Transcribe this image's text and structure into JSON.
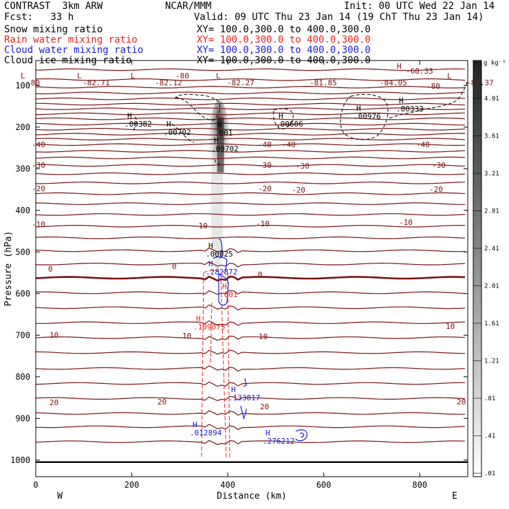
{
  "header": {
    "project": "CONTRAST  3km ARW",
    "org": "NCAR/MMM",
    "init": "Init: 00 UTC Wed 22 Jan 14",
    "fcst": "Fcst:   33 h",
    "valid": "Valid: 09 UTC Thu 23 Jan 14 (19 ChT Thu 23 Jan 14)",
    "lines": [
      {
        "name": "Snow mixing ratio",
        "xsec": "XY= 100.0,300.0 to 400.0,300.0",
        "color": "#000000"
      },
      {
        "name": "Rain water mixing ratio",
        "xsec": "XY= 100.0,300.0 to 400.0,300.0",
        "color": "#e8231f"
      },
      {
        "name": "Cloud water mixing ratio",
        "xsec": "XY= 100.0,300.0 to 400.0,300.0",
        "color": "#1a1ad6"
      },
      {
        "name": "Cloud ice mixing ratio",
        "xsec": "XY= 100.0,300.0 to 400.0,300.0",
        "color": "#000000"
      }
    ]
  },
  "chart_data": {
    "type": "contour cross-section",
    "xlabel": "Distance (km)",
    "ylabel": "Pressure (hPa)",
    "xlim": [
      0,
      900
    ],
    "ylim": [
      1040,
      40
    ],
    "x_ticks": [
      "0",
      "200",
      "400",
      "600",
      "800"
    ],
    "y_ticks": [
      "100",
      "200",
      "300",
      "400",
      "500",
      "600",
      "700",
      "800",
      "900",
      "1000"
    ],
    "x_end_labels": {
      "left": "W",
      "right": "E"
    },
    "colorbar": {
      "unit": "g kg⁻¹",
      "labels": [
        "4.01",
        "3.61",
        "3.21",
        "2.81",
        "2.41",
        "2.01",
        "1.61",
        "1.21",
        ".81",
        ".41",
        ".01"
      ]
    },
    "snow_plume": {
      "x_center": 385,
      "top_hPa": 160,
      "bottom_hPa": 560
    },
    "temperature_contours": {
      "color": "#7a1111",
      "levels_hPa": [
        62,
        86,
        104,
        118,
        132,
        145,
        156,
        168,
        180,
        193,
        205,
        217,
        229,
        242,
        258,
        274,
        292,
        312,
        334,
        360,
        384,
        410,
        438,
        466,
        497,
        529,
        562,
        598,
        634,
        670,
        706,
        742,
        780,
        816,
        852,
        888,
        920,
        956
      ],
      "freezing_level_hPa": 562,
      "labels": [
        {
          "text": "-80",
          "x": 38,
          "y": 120
        },
        {
          "text": "-82.71",
          "x": 120,
          "y": 120
        },
        {
          "text": "-82.12",
          "x": 225,
          "y": 120
        },
        {
          "text": "-82.27",
          "x": 330,
          "y": 120
        },
        {
          "text": "-81.85",
          "x": 450,
          "y": 120
        },
        {
          "text": "-84.05",
          "x": 552,
          "y": 120
        },
        {
          "text": "-80",
          "x": 620,
          "y": 125
        },
        {
          "text": "-82.37",
          "x": 678,
          "y": 120
        },
        {
          "text": "-80",
          "x": 255,
          "y": 110
        },
        {
          "text": "-68.33",
          "x": 590,
          "y": 103
        },
        {
          "text": "-40",
          "x": 46,
          "y": 210
        },
        {
          "text": "-40",
          "x": 375,
          "y": 210
        },
        {
          "text": "-40",
          "x": 410,
          "y": 210
        },
        {
          "text": "-40",
          "x": 605,
          "y": 210
        },
        {
          "text": "-30",
          "x": 46,
          "y": 240
        },
        {
          "text": "-30",
          "x": 375,
          "y": 240
        },
        {
          "text": "-30",
          "x": 430,
          "y": 241
        },
        {
          "text": "-30",
          "x": 628,
          "y": 240
        },
        {
          "text": "-20",
          "x": 46,
          "y": 274
        },
        {
          "text": "-20",
          "x": 375,
          "y": 274
        },
        {
          "text": "-20",
          "x": 424,
          "y": 276
        },
        {
          "text": "-20",
          "x": 624,
          "y": 275
        },
        {
          "text": "-10",
          "x": 46,
          "y": 326
        },
        {
          "text": "-10",
          "x": 282,
          "y": 328
        },
        {
          "text": "-10",
          "x": 372,
          "y": 325
        },
        {
          "text": "-10",
          "x": 580,
          "y": 323
        },
        {
          "text": "0",
          "x": 70,
          "y": 391
        },
        {
          "text": "0",
          "x": 250,
          "y": 387
        },
        {
          "text": "0",
          "x": 375,
          "y": 399
        },
        {
          "text": "10",
          "x": 648,
          "y": 474
        },
        {
          "text": "10",
          "x": 72,
          "y": 487
        },
        {
          "text": "10",
          "x": 265,
          "y": 488
        },
        {
          "text": "10",
          "x": 376,
          "y": 489
        },
        {
          "text": "20",
          "x": 72,
          "y": 585
        },
        {
          "text": "20",
          "x": 229,
          "y": 584
        },
        {
          "text": "20",
          "x": 378,
          "y": 591
        },
        {
          "text": "20",
          "x": 664,
          "y": 584
        }
      ]
    },
    "maxima_labels": [
      {
        "text": "H",
        "value": ".00382",
        "x": 185,
        "y": 172,
        "color": "#000000"
      },
      {
        "text": "H",
        "value": ".00702",
        "x": 242,
        "y": 184,
        "color": "#000000"
      },
      {
        "text": "H",
        "value": ".00606",
        "x": 405,
        "y": 172,
        "color": "#000000"
      },
      {
        "text": "H",
        "value": ".00976",
        "x": 518,
        "y": 161,
        "color": "#000000"
      },
      {
        "text": "H",
        "value": ".00332",
        "x": 580,
        "y": 150,
        "color": "#000000"
      },
      {
        "text": "H",
        "value": ".001",
        "x": 316,
        "y": 185,
        "color": "#000000"
      },
      {
        "text": "H",
        "value": ".00702",
        "x": 311,
        "y": 208,
        "color": "#000000"
      },
      {
        "text": "H",
        "value": ".00025",
        "x": 303,
        "y": 361,
        "color": "#000000"
      },
      {
        "text": "H",
        "value": ".282872",
        "x": 303,
        "y": 387,
        "color": "#1a1ad6"
      },
      {
        "text": "H",
        "value": ".001",
        "x": 323,
        "y": 420,
        "color": "#e8231f"
      },
      {
        "text": "H",
        "value": ".109075",
        "x": 285,
        "y": 467,
        "color": "#e8231f"
      },
      {
        "text": "H",
        "value": ".133817",
        "x": 336,
        "y": 570,
        "color": "#1a1ad6"
      },
      {
        "text": "H",
        "value": ".012894",
        "x": 280,
        "y": 621,
        "color": "#1a1ad6"
      },
      {
        "text": "H",
        "value": ".276212",
        "x": 386,
        "y": 633,
        "color": "#1a1ad6"
      }
    ],
    "top_labels": [
      {
        "text": "L",
        "x": 30,
        "y": 110
      },
      {
        "text": "L",
        "x": 112,
        "y": 110
      },
      {
        "text": "L",
        "x": 190,
        "y": 110
      },
      {
        "text": "H",
        "x": 577,
        "y": 96
      },
      {
        "text": "L",
        "x": 650,
        "y": 110
      },
      {
        "text": "L",
        "x": 314,
        "y": 110
      }
    ],
    "cloud_ice_value": ".001",
    "axis_value_10": "10"
  }
}
